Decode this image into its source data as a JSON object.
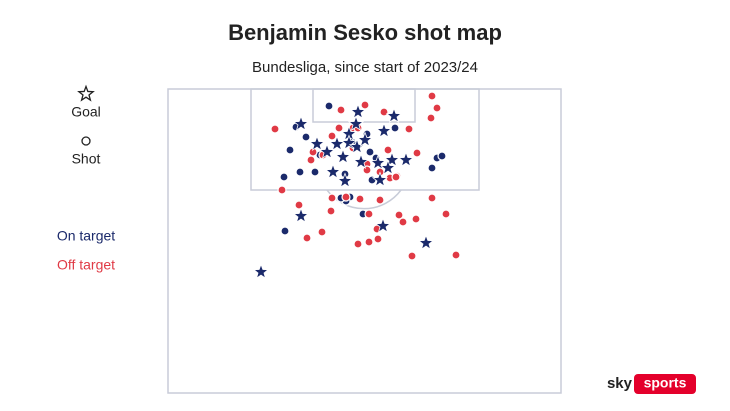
{
  "chart_data": {
    "type": "scatter",
    "title": "Benjamin Sesko shot map",
    "subtitle": "Bundesliga, since start of 2023/24",
    "xlim": [
      0,
      393
    ],
    "ylim": [
      0,
      304
    ],
    "markers": [
      {
        "name": "Goal",
        "symbol": "star"
      },
      {
        "name": "Shot",
        "symbol": "circle"
      }
    ],
    "series": [
      {
        "name": "On target",
        "color": "#1b2a6b",
        "goals": {
          "x": [
            190,
            226,
            133,
            188,
            181,
            216,
            149,
            169,
            181,
            189,
            197,
            159,
            175,
            193,
            224,
            238,
            210,
            220,
            165,
            177,
            212,
            133,
            215,
            258,
            93
          ],
          "y": [
            23,
            27,
            35,
            35,
            45,
            42,
            55,
            55,
            54,
            58,
            51,
            63,
            68,
            73,
            71,
            71,
            74,
            79,
            83,
            92,
            91,
            127,
            137,
            154,
            183
          ]
        },
        "shots": {
          "x": [
            161,
            199,
            227,
            128,
            138,
            122,
            116,
            132,
            147,
            152,
            204,
            182,
            178,
            173,
            269,
            274,
            264,
            177,
            117,
            195,
            184,
            202,
            208
          ],
          "y": [
            17,
            45,
            39,
            38,
            48,
            61,
            88,
            83,
            83,
            66,
            91,
            108,
            112,
            109,
            69,
            67,
            79,
            85,
            142,
            125,
            53,
            63,
            69
          ]
        }
      },
      {
        "name": "Off target",
        "color": "#e03a45",
        "shots": {
          "x": [
            264,
            269,
            263,
            197,
            107,
            173,
            216,
            241,
            155,
            143,
            145,
            164,
            185,
            171,
            220,
            249,
            199,
            199,
            212,
            222,
            229,
            185,
            164,
            192,
            178,
            163,
            131,
            154,
            139,
            114,
            201,
            209,
            210,
            201,
            190,
            212,
            231,
            235,
            248,
            264,
            278,
            244,
            288,
            190,
            228
          ],
          "y": [
            7,
            19,
            29,
            16,
            40,
            21,
            23,
            40,
            66,
            71,
            63,
            47,
            39,
            39,
            61,
            64,
            75,
            81,
            83,
            89,
            87,
            59,
            109,
            110,
            108,
            122,
            116,
            143,
            149,
            101,
            125,
            140,
            150,
            153,
            155,
            111,
            126,
            133,
            130,
            109,
            125,
            167,
            166,
            39,
            88
          ]
        }
      }
    ]
  },
  "logo": {
    "brand": "sky",
    "product": "sports"
  }
}
